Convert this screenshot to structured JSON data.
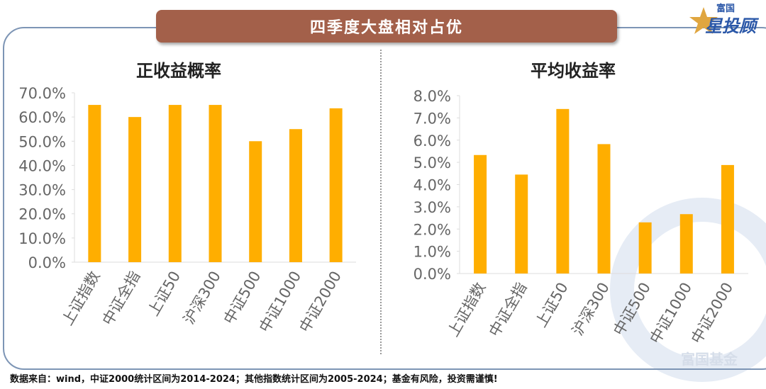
{
  "banner_title": "四季度大盘相对占优",
  "logo": {
    "top": "富国",
    "main": "星投顾"
  },
  "watermark": "富国基金",
  "footer": "数据来自：wind，中证2000统计区间为2014-2024；其他指数统计区间为2005-2024；基金有风险，投资需谨慎!",
  "colors": {
    "bar": "#FFAE00",
    "banner": "#A3604A",
    "axis_text": "#666666"
  },
  "chart_data": [
    {
      "type": "bar",
      "title": "正收益概率",
      "categories": [
        "上证指数",
        "中证全指",
        "上证50",
        "沪深300",
        "中证500",
        "中证1000",
        "中证2000"
      ],
      "values": [
        65.0,
        60.0,
        65.0,
        65.0,
        50.0,
        55.0,
        63.6
      ],
      "ylim": [
        0,
        70
      ],
      "yticks": [
        "0.0%",
        "10.0%",
        "20.0%",
        "30.0%",
        "40.0%",
        "50.0%",
        "60.0%",
        "70.0%"
      ],
      "xlabel": "",
      "ylabel": ""
    },
    {
      "type": "bar",
      "title": "平均收益率",
      "categories": [
        "上证指数",
        "中证全指",
        "上证50",
        "沪深300",
        "中证500",
        "中证1000",
        "中证2000"
      ],
      "values": [
        5.33,
        4.45,
        7.4,
        5.82,
        2.3,
        2.67,
        4.88
      ],
      "ylim": [
        0,
        8
      ],
      "yticks": [
        "0.0%",
        "1.0%",
        "2.0%",
        "3.0%",
        "4.0%",
        "5.0%",
        "6.0%",
        "7.0%",
        "8.0%"
      ],
      "xlabel": "",
      "ylabel": ""
    }
  ]
}
